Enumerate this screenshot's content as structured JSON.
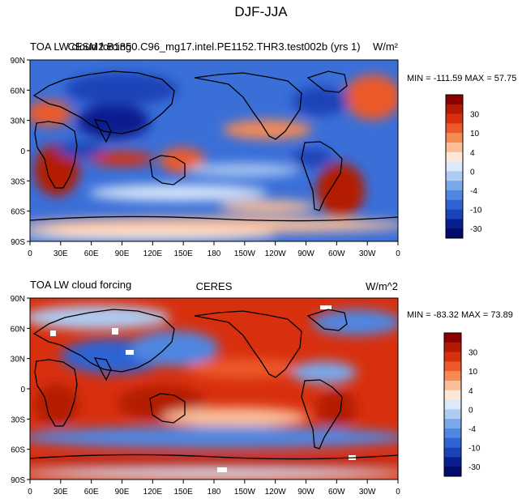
{
  "figure_title": "DJF-JJA",
  "panels": [
    {
      "left_title": "TOA LW cloud forcing",
      "center_title": "CESM2.B1850.C96_mg17.intel.PE1152.THR3.test002b (yrs 1)",
      "units": "W/m²",
      "stats": "MIN = -111.59 MAX =  57.75"
    },
    {
      "left_title": "TOA LW cloud forcing",
      "center_title": "CERES",
      "units": "W/m^2",
      "stats": "MIN = -83.32 MAX =  73.89"
    }
  ],
  "colorbar": {
    "labels": [
      "30",
      "10",
      "4",
      "0",
      "-4",
      "-10",
      "-30"
    ],
    "colors": [
      "#8b0000",
      "#b31a00",
      "#d8300f",
      "#ec5a2a",
      "#f58a55",
      "#fbbe98",
      "#fde8d8",
      "#dbe9fa",
      "#aecbf2",
      "#7aa7ea",
      "#4f86e0",
      "#2f63d3",
      "#1a43b8",
      "#0a1f8f",
      "#020a6b"
    ]
  },
  "chart_data": [
    {
      "type": "heatmap",
      "title": "TOA LW cloud forcing — CESM2.B1850.C96_mg17.intel.PE1152.THR3.test002b (yrs 1)",
      "subtitle": "DJF-JJA",
      "units": "W/m²",
      "x_ticks": [
        "0",
        "30E",
        "60E",
        "90E",
        "120E",
        "150E",
        "180",
        "150W",
        "120W",
        "90W",
        "60W",
        "30W",
        "0"
      ],
      "y_ticks": [
        "90N",
        "60N",
        "30N",
        "0",
        "30S",
        "60S",
        "90S"
      ],
      "xlim": [
        0,
        360
      ],
      "ylim": [
        -90,
        90
      ],
      "min": -111.59,
      "max": 57.75,
      "contour_levels": [
        -30,
        -10,
        -4,
        0,
        4,
        10,
        30
      ]
    },
    {
      "type": "heatmap",
      "title": "TOA LW cloud forcing — CERES",
      "subtitle": "DJF-JJA",
      "units": "W/m^2",
      "x_ticks": [
        "0",
        "30E",
        "60E",
        "90E",
        "120E",
        "150E",
        "180",
        "150W",
        "120W",
        "90W",
        "60W",
        "30W",
        "0"
      ],
      "y_ticks": [
        "90N",
        "60N",
        "30N",
        "0",
        "30S",
        "60S",
        "90S"
      ],
      "xlim": [
        0,
        360
      ],
      "ylim": [
        -90,
        90
      ],
      "min": -83.32,
      "max": 73.89,
      "contour_levels": [
        -30,
        -10,
        -4,
        0,
        4,
        10,
        30
      ]
    }
  ]
}
